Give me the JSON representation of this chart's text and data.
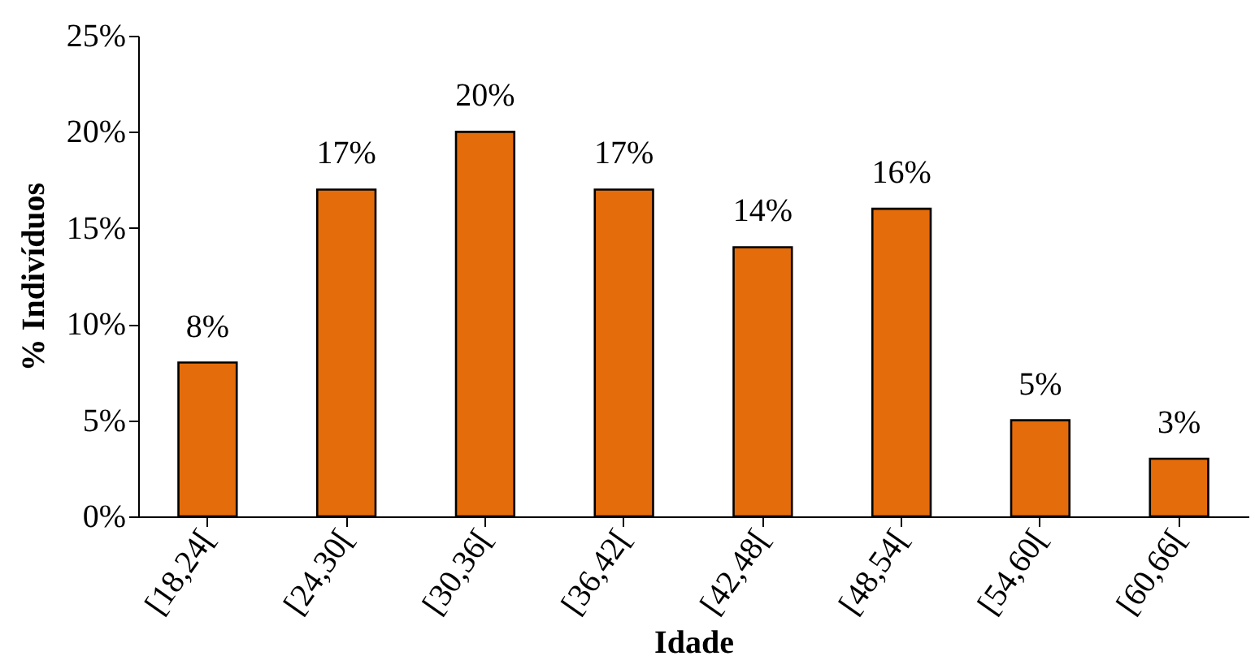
{
  "chart_data": {
    "type": "bar",
    "xlabel": "Idade",
    "ylabel": "% Indivíduos",
    "categories": [
      "[18,24[",
      "[24,30[",
      "[30,36[",
      "[36,42[",
      "[42,48[",
      "[48,54[",
      "[54,60[",
      "[60,66["
    ],
    "values": [
      8,
      17,
      20,
      17,
      14,
      16,
      5,
      3
    ],
    "value_labels": [
      "8%",
      "17%",
      "20%",
      "17%",
      "14%",
      "16%",
      "5%",
      "3%"
    ],
    "color": "#e46c0a",
    "ylim": [
      0,
      25
    ],
    "yticks": [
      {
        "value": 0,
        "label": "0%"
      },
      {
        "value": 5,
        "label": "5%"
      },
      {
        "value": 10,
        "label": "10%"
      },
      {
        "value": 15,
        "label": "15%"
      },
      {
        "value": 20,
        "label": "20%"
      },
      {
        "value": 25,
        "label": "25%"
      }
    ],
    "grid": false
  }
}
